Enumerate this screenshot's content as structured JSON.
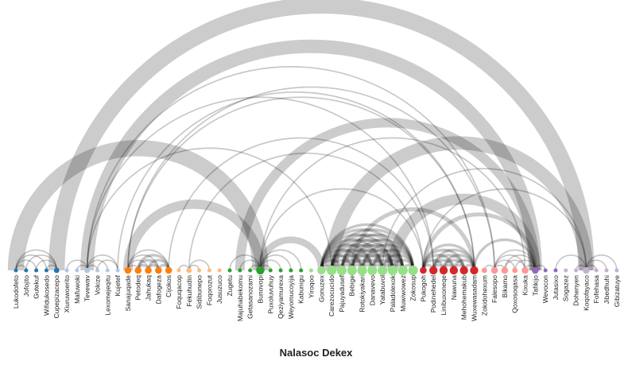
{
  "title": "Nalasoc Dekex",
  "chart_data": {
    "type": "arc",
    "title": "Nalasoc Dekex",
    "nodes": [
      {
        "label": "Lukodofeto",
        "group": 0,
        "size": 1
      },
      {
        "label": "Jofojito",
        "group": 0,
        "size": 1
      },
      {
        "label": "Gutekuf",
        "group": 0,
        "size": 1
      },
      {
        "label": "Wifidukosedo",
        "group": 0,
        "size": 1
      },
      {
        "label": "Cupepizacepo",
        "group": 0,
        "size": 2
      },
      {
        "label": "Xiuruwoerito",
        "group": 1,
        "size": 1
      },
      {
        "label": "Mafuwoki",
        "group": 1,
        "size": 1
      },
      {
        "label": "Tevewav",
        "group": 1,
        "size": 2
      },
      {
        "label": "Vokize",
        "group": 1,
        "size": 1
      },
      {
        "label": "Lexomejeqitu",
        "group": 1,
        "size": 1
      },
      {
        "label": "Kujetef",
        "group": 1,
        "size": 1
      },
      {
        "label": "Sanajuqade",
        "group": 2,
        "size": 3
      },
      {
        "label": "Petodeq",
        "group": 2,
        "size": 3
      },
      {
        "label": "Jahukaq",
        "group": 2,
        "size": 3
      },
      {
        "label": "Dafogeza",
        "group": 2,
        "size": 3
      },
      {
        "label": "Cijokos",
        "group": 2,
        "size": 3
      },
      {
        "label": "Foquqacop",
        "group": 3,
        "size": 1
      },
      {
        "label": "Fekuhudin",
        "group": 3,
        "size": 2
      },
      {
        "label": "Sidibunepo",
        "group": 3,
        "size": 1
      },
      {
        "label": "Foqorozut",
        "group": 3,
        "size": 1
      },
      {
        "label": "Jusuzuco",
        "group": 3,
        "size": 1
      },
      {
        "label": "Zugetu",
        "group": 4,
        "size": 1
      },
      {
        "label": "Majuhabekomu",
        "group": 4,
        "size": 1
      },
      {
        "label": "Getasanozami",
        "group": 4,
        "size": 1
      },
      {
        "label": "Bunovopi",
        "group": 4,
        "size": 4
      },
      {
        "label": "Puxoluvuhuy",
        "group": 4,
        "size": 1
      },
      {
        "label": "Qeziyamurexa",
        "group": 4,
        "size": 1
      },
      {
        "label": "Weyomucoyija",
        "group": 4,
        "size": 1
      },
      {
        "label": "Kabunigu",
        "group": 4,
        "size": 1
      },
      {
        "label": "Yiroqoo",
        "group": 5,
        "size": 1
      },
      {
        "label": "Gonuzex",
        "group": 5,
        "size": 4
      },
      {
        "label": "Carezocucido",
        "group": 5,
        "size": 5
      },
      {
        "label": "Pajuyadusef",
        "group": 5,
        "size": 5
      },
      {
        "label": "Bebige",
        "group": 5,
        "size": 5
      },
      {
        "label": "Rotokiyakari",
        "group": 5,
        "size": 5
      },
      {
        "label": "Danavevo",
        "group": 5,
        "size": 5
      },
      {
        "label": "Yatabuvol",
        "group": 5,
        "size": 5
      },
      {
        "label": "Paladolexok",
        "group": 5,
        "size": 5
      },
      {
        "label": "Muwiwowez",
        "group": 5,
        "size": 5
      },
      {
        "label": "Zokosup",
        "group": 5,
        "size": 5
      },
      {
        "label": "Pukogoh",
        "group": 6,
        "size": 3
      },
      {
        "label": "Podinehedel",
        "group": 6,
        "size": 4
      },
      {
        "label": "Linibuxoneqe",
        "group": 6,
        "size": 4
      },
      {
        "label": "Nawuna",
        "group": 6,
        "size": 4
      },
      {
        "label": "Mehohemakub",
        "group": 6,
        "size": 4
      },
      {
        "label": "Wuxewasadam",
        "group": 6,
        "size": 4
      },
      {
        "label": "Zokidohexum",
        "group": 7,
        "size": 2
      },
      {
        "label": "Falesopo",
        "group": 7,
        "size": 3
      },
      {
        "label": "Bikamo",
        "group": 7,
        "size": 3
      },
      {
        "label": "Qoxosoqasa",
        "group": 7,
        "size": 2
      },
      {
        "label": "Kixuka",
        "group": 7,
        "size": 3
      },
      {
        "label": "Tafikijo",
        "group": 8,
        "size": 3
      },
      {
        "label": "Wevocon",
        "group": 8,
        "size": 1
      },
      {
        "label": "Jutasixo",
        "group": 8,
        "size": 1
      },
      {
        "label": "Sogazez",
        "group": 9,
        "size": 1
      },
      {
        "label": "Dohenyen",
        "group": 9,
        "size": 1
      },
      {
        "label": "Koqofayaco",
        "group": 9,
        "size": 3
      },
      {
        "label": "Fofehasa",
        "group": 9,
        "size": 1
      },
      {
        "label": "Jibedhuhi",
        "group": 9,
        "size": 1
      },
      {
        "label": "Gibizatuye",
        "group": 9,
        "size": 1
      }
    ],
    "group_colors": [
      "#1f77b4",
      "#aec7e8",
      "#ff7f0e",
      "#ffbb78",
      "#2ca02c",
      "#98df8a",
      "#d62728",
      "#ff9896",
      "#9467bd",
      "#c5b0d5"
    ],
    "links": [
      {
        "source": 0,
        "target": 1,
        "value": 1
      },
      {
        "source": 0,
        "target": 2,
        "value": 1
      },
      {
        "source": 0,
        "target": 3,
        "value": 1
      },
      {
        "source": 0,
        "target": 4,
        "value": 1
      },
      {
        "source": 1,
        "target": 4,
        "value": 1
      },
      {
        "source": 2,
        "target": 4,
        "value": 1
      },
      {
        "source": 3,
        "target": 4,
        "value": 1
      },
      {
        "source": 0,
        "target": 24,
        "value": 12
      },
      {
        "source": 4,
        "target": 56,
        "value": 12
      },
      {
        "source": 6,
        "target": 7,
        "value": 1
      },
      {
        "source": 7,
        "target": 8,
        "value": 1
      },
      {
        "source": 7,
        "target": 9,
        "value": 1
      },
      {
        "source": 7,
        "target": 10,
        "value": 1
      },
      {
        "source": 5,
        "target": 7,
        "value": 1
      },
      {
        "source": 8,
        "target": 10,
        "value": 1
      },
      {
        "source": 7,
        "target": 51,
        "value": 10
      },
      {
        "source": 7,
        "target": 41,
        "value": 1
      },
      {
        "source": 7,
        "target": 31,
        "value": 1
      },
      {
        "source": 11,
        "target": 12,
        "value": 1
      },
      {
        "source": 11,
        "target": 13,
        "value": 1
      },
      {
        "source": 11,
        "target": 14,
        "value": 1
      },
      {
        "source": 11,
        "target": 15,
        "value": 1
      },
      {
        "source": 12,
        "target": 13,
        "value": 2
      },
      {
        "source": 12,
        "target": 14,
        "value": 2
      },
      {
        "source": 12,
        "target": 15,
        "value": 2
      },
      {
        "source": 13,
        "target": 14,
        "value": 2
      },
      {
        "source": 13,
        "target": 15,
        "value": 2
      },
      {
        "source": 14,
        "target": 15,
        "value": 2
      },
      {
        "source": 11,
        "target": 24,
        "value": 7
      },
      {
        "source": 11,
        "target": 45,
        "value": 1
      },
      {
        "source": 10,
        "target": 45,
        "value": 1
      },
      {
        "source": 16,
        "target": 17,
        "value": 1
      },
      {
        "source": 17,
        "target": 18,
        "value": 1
      },
      {
        "source": 17,
        "target": 19,
        "value": 1
      },
      {
        "source": 17,
        "target": 40,
        "value": 1
      },
      {
        "source": 22,
        "target": 24,
        "value": 1
      },
      {
        "source": 23,
        "target": 24,
        "value": 1
      },
      {
        "source": 21,
        "target": 24,
        "value": 1
      },
      {
        "source": 24,
        "target": 25,
        "value": 1
      },
      {
        "source": 24,
        "target": 26,
        "value": 1
      },
      {
        "source": 24,
        "target": 27,
        "value": 1
      },
      {
        "source": 24,
        "target": 28,
        "value": 1
      },
      {
        "source": 24,
        "target": 30,
        "value": 5
      },
      {
        "source": 24,
        "target": 40,
        "value": 1
      },
      {
        "source": 22,
        "target": 51,
        "value": 7
      },
      {
        "source": 30,
        "target": 31,
        "value": 1
      },
      {
        "source": 30,
        "target": 32,
        "value": 2
      },
      {
        "source": 30,
        "target": 33,
        "value": 2
      },
      {
        "source": 30,
        "target": 34,
        "value": 2
      },
      {
        "source": 30,
        "target": 35,
        "value": 2
      },
      {
        "source": 30,
        "target": 36,
        "value": 2
      },
      {
        "source": 30,
        "target": 37,
        "value": 2
      },
      {
        "source": 30,
        "target": 38,
        "value": 2
      },
      {
        "source": 30,
        "target": 39,
        "value": 2
      },
      {
        "source": 31,
        "target": 32,
        "value": 2
      },
      {
        "source": 31,
        "target": 33,
        "value": 2
      },
      {
        "source": 31,
        "target": 34,
        "value": 2
      },
      {
        "source": 31,
        "target": 35,
        "value": 2
      },
      {
        "source": 31,
        "target": 36,
        "value": 2
      },
      {
        "source": 31,
        "target": 37,
        "value": 2
      },
      {
        "source": 31,
        "target": 38,
        "value": 2
      },
      {
        "source": 31,
        "target": 39,
        "value": 2
      },
      {
        "source": 32,
        "target": 33,
        "value": 2
      },
      {
        "source": 32,
        "target": 34,
        "value": 2
      },
      {
        "source": 32,
        "target": 35,
        "value": 2
      },
      {
        "source": 32,
        "target": 36,
        "value": 2
      },
      {
        "source": 32,
        "target": 37,
        "value": 2
      },
      {
        "source": 32,
        "target": 38,
        "value": 2
      },
      {
        "source": 32,
        "target": 39,
        "value": 2
      },
      {
        "source": 33,
        "target": 34,
        "value": 2
      },
      {
        "source": 33,
        "target": 35,
        "value": 2
      },
      {
        "source": 33,
        "target": 36,
        "value": 2
      },
      {
        "source": 33,
        "target": 37,
        "value": 2
      },
      {
        "source": 33,
        "target": 38,
        "value": 2
      },
      {
        "source": 33,
        "target": 39,
        "value": 2
      },
      {
        "source": 34,
        "target": 35,
        "value": 2
      },
      {
        "source": 34,
        "target": 36,
        "value": 2
      },
      {
        "source": 34,
        "target": 37,
        "value": 2
      },
      {
        "source": 34,
        "target": 38,
        "value": 2
      },
      {
        "source": 34,
        "target": 39,
        "value": 2
      },
      {
        "source": 35,
        "target": 36,
        "value": 2
      },
      {
        "source": 35,
        "target": 37,
        "value": 2
      },
      {
        "source": 35,
        "target": 38,
        "value": 2
      },
      {
        "source": 35,
        "target": 39,
        "value": 2
      },
      {
        "source": 36,
        "target": 37,
        "value": 2
      },
      {
        "source": 36,
        "target": 38,
        "value": 2
      },
      {
        "source": 36,
        "target": 39,
        "value": 2
      },
      {
        "source": 37,
        "target": 38,
        "value": 2
      },
      {
        "source": 37,
        "target": 39,
        "value": 2
      },
      {
        "source": 38,
        "target": 39,
        "value": 2
      },
      {
        "source": 31,
        "target": 56,
        "value": 10
      },
      {
        "source": 37,
        "target": 51,
        "value": 8
      },
      {
        "source": 15,
        "target": 41,
        "value": 1
      },
      {
        "source": 11,
        "target": 47,
        "value": 1
      },
      {
        "source": 7,
        "target": 47,
        "value": 1
      },
      {
        "source": 24,
        "target": 50,
        "value": 1
      },
      {
        "source": 40,
        "target": 41,
        "value": 2
      },
      {
        "source": 40,
        "target": 42,
        "value": 2
      },
      {
        "source": 40,
        "target": 43,
        "value": 2
      },
      {
        "source": 40,
        "target": 44,
        "value": 2
      },
      {
        "source": 40,
        "target": 45,
        "value": 2
      },
      {
        "source": 41,
        "target": 42,
        "value": 2
      },
      {
        "source": 41,
        "target": 43,
        "value": 2
      },
      {
        "source": 41,
        "target": 44,
        "value": 2
      },
      {
        "source": 41,
        "target": 45,
        "value": 2
      },
      {
        "source": 42,
        "target": 43,
        "value": 2
      },
      {
        "source": 42,
        "target": 44,
        "value": 2
      },
      {
        "source": 42,
        "target": 45,
        "value": 2
      },
      {
        "source": 43,
        "target": 44,
        "value": 2
      },
      {
        "source": 43,
        "target": 45,
        "value": 2
      },
      {
        "source": 44,
        "target": 45,
        "value": 2
      },
      {
        "source": 40,
        "target": 51,
        "value": 3
      },
      {
        "source": 33,
        "target": 45,
        "value": 3
      },
      {
        "source": 45,
        "target": 51,
        "value": 2
      },
      {
        "source": 36,
        "target": 56,
        "value": 1
      },
      {
        "source": 40,
        "target": 56,
        "value": 1
      },
      {
        "source": 46,
        "target": 47,
        "value": 1
      },
      {
        "source": 47,
        "target": 48,
        "value": 1
      },
      {
        "source": 47,
        "target": 49,
        "value": 1
      },
      {
        "source": 47,
        "target": 50,
        "value": 1
      },
      {
        "source": 47,
        "target": 51,
        "value": 1
      },
      {
        "source": 48,
        "target": 50,
        "value": 1
      },
      {
        "source": 49,
        "target": 51,
        "value": 1
      },
      {
        "source": 48,
        "target": 51,
        "value": 1
      },
      {
        "source": 50,
        "target": 51,
        "value": 1
      },
      {
        "source": 51,
        "target": 52,
        "value": 1
      },
      {
        "source": 53,
        "target": 56,
        "value": 1
      },
      {
        "source": 55,
        "target": 56,
        "value": 1
      },
      {
        "source": 56,
        "target": 57,
        "value": 1
      },
      {
        "source": 56,
        "target": 58,
        "value": 1
      },
      {
        "source": 56,
        "target": 59,
        "value": 1
      }
    ]
  }
}
